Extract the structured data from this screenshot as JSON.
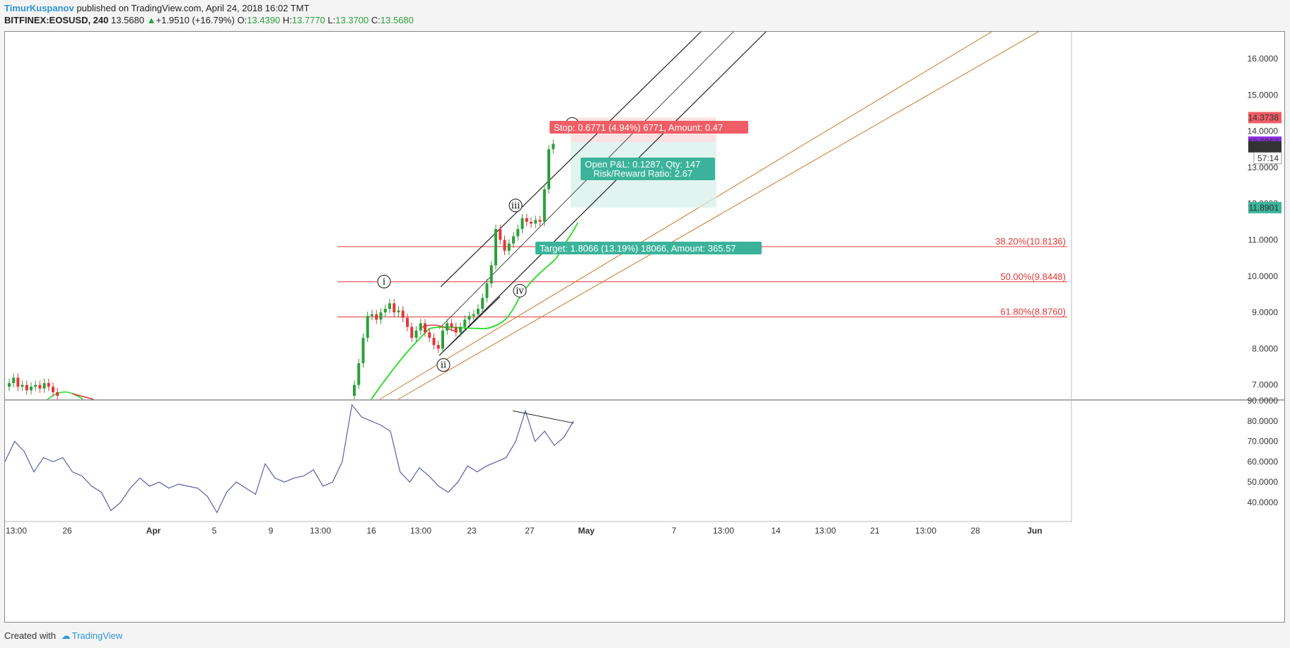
{
  "header": {
    "author": "TimurKuspanov",
    "published_text": " published on TradingView.com, April 24, 2018 16:02 TMT",
    "symbol": "BITFINEX:EOSUSD, 240",
    "last": "13.5680",
    "change_arrow": "▲",
    "change": "+1.9510 (+16.79%)",
    "open_label": "O:",
    "open": "13.4390",
    "high_label": "H:",
    "high": "13.7770",
    "low_label": "L:",
    "low": "13.3700",
    "close_label": "C:",
    "close": "13.5680"
  },
  "footer": {
    "created_with": "Created with",
    "brand": "TradingView"
  },
  "colors": {
    "up": "#2d9f3a",
    "down": "#e03838",
    "channel": "#222222",
    "fan": "#c8772b",
    "fib": "#e03838",
    "ema_green": "#22dd22",
    "ema_red": "#e03838",
    "rsi": "#5b5fa8",
    "stop_box": "#f7cfd2",
    "target_box": "#d6f0ea",
    "stop_label": "#ef5d65",
    "target_label": "#3bb39a",
    "price_purple": "#8a2be2",
    "price_dark": "#333333",
    "price_red": "#ef5d65",
    "price_green": "#3bb39a"
  },
  "chart_data": {
    "type": "candlestick",
    "y_axis_ticks": [
      "16.0000",
      "15.0000",
      "14.0000",
      "13.0000",
      "12.0000",
      "11.0000",
      "10.0000",
      "9.0000",
      "8.0000",
      "7.0000"
    ],
    "y_axis_values": [
      16,
      15,
      14,
      13,
      12,
      11,
      10,
      9,
      8,
      7
    ],
    "ylim": [
      6.5,
      16.9
    ],
    "rsi_axis_ticks": [
      "90.0000",
      "80.0000",
      "70.0000",
      "60.0000",
      "50.0000",
      "40.0000"
    ],
    "rsi_axis_values": [
      90,
      80,
      70,
      60,
      50,
      40
    ],
    "rsi_ylim": [
      32,
      90
    ],
    "x_axis_labels": [
      "13:00",
      "26",
      "Apr",
      "5",
      "9",
      "13:00",
      "16",
      "13:00",
      "23",
      "27",
      "May",
      "7",
      "13:00",
      "14",
      "13:00",
      "21",
      "13:00",
      "28",
      "Jun"
    ],
    "x_axis_bold": [
      false,
      false,
      true,
      false,
      false,
      false,
      false,
      false,
      false,
      false,
      true,
      false,
      false,
      false,
      false,
      false,
      false,
      false,
      true
    ],
    "fib_levels": [
      {
        "label": "38.20%(10.8136)",
        "value": 10.8136
      },
      {
        "label": "50.00%(9.8448)",
        "value": 9.8448
      },
      {
        "label": "61.80%(8.8760)",
        "value": 8.876
      }
    ],
    "price_labels": [
      {
        "text": "14.3738",
        "value": 14.3738,
        "role": "stop"
      },
      {
        "text": "13.6967",
        "value": 13.6967,
        "role": "entry"
      },
      {
        "text": "13.5680",
        "value": 13.568,
        "role": "last"
      },
      {
        "text": "57:14",
        "role": "countdown"
      },
      {
        "text": "11.8901",
        "value": 11.8901,
        "role": "target"
      }
    ],
    "stop_label": "Stop: 0.6771 (4.94%) 6771, Amount: 0.47",
    "pnl_label_1": "Open P&L: 0.1287, Qty: 147",
    "pnl_label_2": "Risk/Reward Ratio: 2.67",
    "target_label": "Target: 1.8066 (13.19%) 18066, Amount: 365.57",
    "wave_labels": [
      {
        "text": "i",
        "value": 9.85
      },
      {
        "text": "ii",
        "value": 7.55
      },
      {
        "text": "iii",
        "value": 11.95
      },
      {
        "text": "iv",
        "value": 9.6
      },
      {
        "text": "v",
        "value": 14.2
      }
    ],
    "candles_close": [
      7.05,
      7.2,
      6.95,
      7.0,
      6.85,
      6.95,
      7.0,
      6.9,
      7.05,
      6.95,
      6.8,
      6.7,
      7.0,
      7.6,
      8.3,
      8.9,
      8.95,
      8.8,
      9.0,
      9.1,
      9.25,
      9.0,
      9.05,
      8.85,
      8.6,
      8.3,
      8.5,
      8.7,
      8.45,
      8.3,
      8.1,
      8.0,
      8.5,
      8.7,
      8.6,
      8.45,
      8.6,
      8.8,
      8.9,
      8.95,
      9.1,
      9.4,
      9.8,
      10.3,
      11.3,
      11.0,
      10.7,
      10.9,
      11.1,
      11.3,
      11.6,
      11.5,
      11.45,
      11.55,
      11.5,
      12.4,
      13.5,
      13.65
    ],
    "rsi_values": [
      60,
      70,
      65,
      55,
      62,
      60,
      62,
      55,
      53,
      48,
      45,
      36,
      40,
      47,
      52,
      48,
      50,
      47,
      49,
      48,
      47,
      43,
      35,
      45,
      50,
      47,
      44,
      59,
      52,
      50,
      52,
      53,
      56,
      48,
      50,
      60,
      88,
      82,
      80,
      78,
      75,
      55,
      50,
      57,
      53,
      48,
      45,
      50,
      58,
      55,
      58,
      60,
      62,
      70,
      85,
      70,
      75,
      68,
      72,
      80
    ],
    "rsi_divergence": [
      85,
      79
    ]
  }
}
